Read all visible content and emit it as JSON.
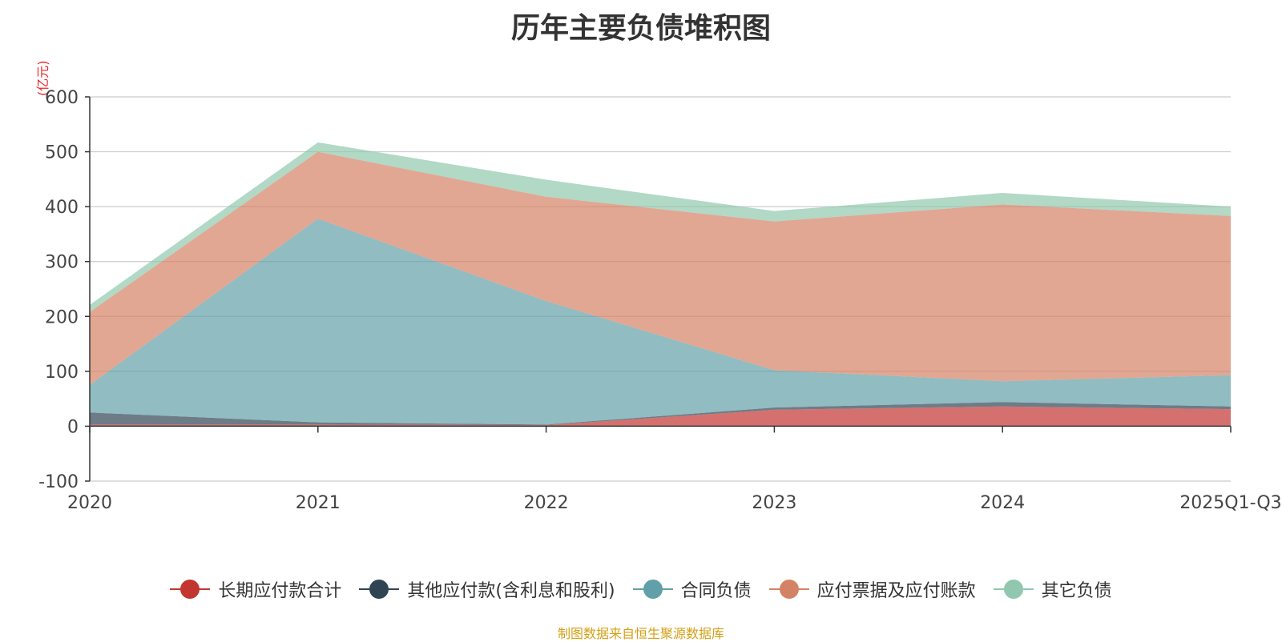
{
  "chart_data": {
    "type": "area",
    "stacked": true,
    "title": "历年主要负债堆积图",
    "unit": "(亿元)",
    "categories": [
      "2020",
      "2021",
      "2022",
      "2023",
      "2024",
      "2025Q1-Q3"
    ],
    "ylim": [
      -100,
      600
    ],
    "yticks": [
      -100,
      0,
      100,
      200,
      300,
      400,
      500,
      600
    ],
    "grid": true,
    "legend_position": "bottom",
    "series": [
      {
        "name": "长期应付款合计",
        "color": "#c23531",
        "values": [
          3,
          3,
          2,
          30,
          36,
          31
        ]
      },
      {
        "name": "其他应付款(含利息和股利)",
        "color": "#2f4554",
        "values": [
          22,
          4,
          1,
          4,
          8,
          5
        ]
      },
      {
        "name": "合同负债",
        "color": "#61a0a8",
        "values": [
          50,
          371,
          225,
          68,
          38,
          57
        ]
      },
      {
        "name": "应付票据及应付账款",
        "color": "#d48265",
        "values": [
          133,
          122,
          190,
          271,
          322,
          290
        ]
      },
      {
        "name": "其它负债",
        "color": "#91c7ae",
        "values": [
          13,
          17,
          31,
          19,
          21,
          17
        ]
      }
    ],
    "source": "制图数据来自恒生聚源数据库"
  }
}
